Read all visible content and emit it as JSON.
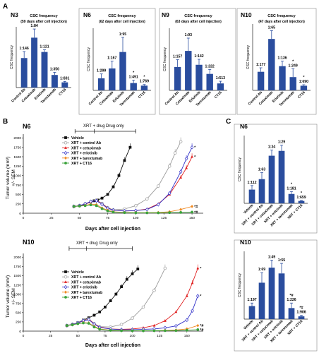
{
  "panel_labels": {
    "a": "A",
    "b": "B",
    "c": "C"
  },
  "colors": {
    "bar": "#2a4d9e",
    "axis": "#222222",
    "vehicle": "#111111",
    "control": "#9a9a9a",
    "cetuximab": "#e02020",
    "erlotinib": "#3030c8",
    "tarextumab": "#f08a24",
    "ct16": "#3aa23a"
  },
  "panel_b": {
    "n6_title": "N6",
    "n10_title": "N10",
    "n6_bracket": {
      "xrt_drug": "XRT + drug",
      "drug_only": "Drug only"
    },
    "n10_bracket": {
      "xrt_drug": "XRT + drug",
      "drug_only": "Drug only"
    },
    "ylabel_line1": "Tumor volume (mm³)",
    "ylabel_line2": "+/- SEM",
    "xlabel": "Days after cell injection"
  },
  "chart_data": [
    {
      "type": "bar",
      "id": "A-N3",
      "title": "N3",
      "subtitle": "CSC frequency",
      "subtitle2": "(59 days after cell injection)",
      "ylabel": "CSC frequency",
      "categories": [
        "Control Ab",
        "Cetuximab",
        "Erlotinib",
        "Tarextumab",
        "CT16"
      ],
      "values": [
        0.0068,
        0.0115,
        0.0082,
        0.0029,
        0.0012
      ],
      "errors": [
        0.0015,
        0.002,
        0.0005,
        0.0006,
        0.0002
      ],
      "labels": [
        "1:146",
        "1:84",
        "1:121",
        "1:350",
        "1:831"
      ],
      "stars": [
        "",
        "",
        "",
        "",
        ""
      ],
      "ylim": [
        0,
        0.014
      ]
    },
    {
      "type": "bar",
      "id": "A-N6",
      "title": "N6",
      "subtitle": "CSC frequency",
      "subtitle2": "(62 days after cell injection)",
      "ylabel": "CSC frequency",
      "categories": [
        "Control Ab",
        "Cetuximab",
        "Erlotinib",
        "Tarextumab",
        "CT16"
      ],
      "values": [
        0.0033,
        0.006,
        0.0105,
        0.002,
        0.0013
      ],
      "errors": [
        0.0012,
        0.002,
        0.004,
        0.0008,
        0.0003
      ],
      "labels": [
        "1:299",
        "1:167",
        "1:95",
        "1:491",
        "1:769"
      ],
      "stars": [
        "",
        "",
        "",
        "*",
        "*"
      ],
      "ylim": [
        0,
        0.017
      ]
    },
    {
      "type": "bar",
      "id": "A-N9",
      "title": "N9",
      "subtitle": "CSC frequency",
      "subtitle2": "(63 days after cell injection)",
      "ylabel": "CSC frequency",
      "categories": [
        "Control Ab",
        "Cetuximab",
        "Erlotinib",
        "Tarextumab",
        "CT16"
      ],
      "values": [
        0.0064,
        0.0108,
        0.007,
        0.0045,
        0.0019
      ],
      "errors": [
        0.002,
        0.0035,
        0.0015,
        0.0012,
        0.0006
      ],
      "labels": [
        "1:157",
        "1:93",
        "1:142",
        "1:222",
        "1:513"
      ],
      "stars": [
        "",
        "",
        "",
        "",
        ""
      ],
      "ylim": [
        0,
        0.017
      ]
    },
    {
      "type": "bar",
      "id": "A-N10",
      "title": "N10",
      "subtitle": "CSC frequency",
      "subtitle2": "(47 days after cell injection)",
      "ylabel": "CSC frequency",
      "categories": [
        "Control Ab",
        "Cetuximab",
        "Erlotinib",
        "Tarextumab",
        "CT16"
      ],
      "values": [
        0.0056,
        0.0155,
        0.0073,
        0.004,
        0.0014
      ],
      "errors": [
        0.0012,
        0.0025,
        0.0015,
        0.0025,
        0.0003
      ],
      "labels": [
        "1:177",
        "1:65",
        "1:136",
        "1:249",
        "1:690"
      ],
      "stars": [
        "",
        "",
        "",
        "*",
        "*"
      ],
      "ylim": [
        0,
        0.02
      ]
    },
    {
      "type": "line",
      "id": "B-N6",
      "title": "N6",
      "xlabel": "Days after cell injection",
      "ylabel": "Tumor volume (mm³) +/- SEM",
      "xlim": [
        0,
        160
      ],
      "ylim": [
        0,
        2100
      ],
      "xticks": [
        0,
        25,
        50,
        75,
        100,
        125,
        150
      ],
      "yticks": [
        0,
        250,
        500,
        750,
        1000,
        1250,
        1500,
        1750,
        2000
      ],
      "legend": "top-left",
      "series": [
        {
          "name": "Vehicle",
          "key": "vehicle",
          "marker": "filled-square",
          "x": [
            45,
            50,
            55,
            60,
            63,
            66,
            70,
            75,
            80,
            85,
            90,
            95
          ],
          "y": [
            180,
            200,
            240,
            300,
            330,
            350,
            400,
            500,
            700,
            1000,
            1400,
            1750
          ],
          "end_mark": ""
        },
        {
          "name": "XRT + control Ab",
          "key": "control",
          "marker": "open-circle",
          "x": [
            45,
            50,
            55,
            60,
            65,
            70,
            75,
            80,
            90,
            100,
            110,
            120,
            130,
            135,
            140
          ],
          "y": [
            180,
            200,
            250,
            310,
            350,
            260,
            150,
            90,
            110,
            200,
            380,
            720,
            1250,
            1600,
            1900
          ],
          "end_mark": ""
        },
        {
          "name": "XRT + cetuximab",
          "key": "cetuximab",
          "marker": "filled-triangle",
          "x": [
            45,
            50,
            55,
            60,
            65,
            70,
            75,
            80,
            90,
            100,
            110,
            120,
            130,
            140,
            145,
            150
          ],
          "y": [
            180,
            200,
            240,
            300,
            340,
            250,
            140,
            80,
            60,
            70,
            110,
            250,
            500,
            950,
            1200,
            1500
          ],
          "end_mark": "*"
        },
        {
          "name": "XRT + erlotinib",
          "key": "erlotinib",
          "marker": "open-diamond",
          "x": [
            45,
            50,
            55,
            60,
            65,
            70,
            75,
            80,
            90,
            100,
            110,
            120,
            130,
            140,
            145,
            150
          ],
          "y": [
            180,
            200,
            250,
            310,
            330,
            240,
            130,
            80,
            60,
            70,
            100,
            230,
            530,
            1100,
            1450,
            1750
          ],
          "end_mark": "*"
        },
        {
          "name": "XRT + tarextumab",
          "key": "tarextumab",
          "marker": "filled-diamond",
          "x": [
            45,
            50,
            55,
            60,
            65,
            70,
            75,
            80,
            90,
            100,
            110,
            120,
            130,
            140,
            150
          ],
          "y": [
            180,
            190,
            210,
            240,
            230,
            140,
            80,
            40,
            20,
            15,
            15,
            20,
            40,
            100,
            180
          ],
          "end_mark": "*#"
        },
        {
          "name": "XRT + CT16",
          "key": "ct16",
          "marker": "filled-circle",
          "x": [
            45,
            50,
            55,
            60,
            65,
            70,
            75,
            80,
            90,
            100,
            110,
            120,
            130,
            140,
            150
          ],
          "y": [
            180,
            190,
            200,
            220,
            200,
            120,
            60,
            30,
            15,
            10,
            10,
            10,
            15,
            20,
            30
          ],
          "end_mark": "*#"
        }
      ]
    },
    {
      "type": "line",
      "id": "B-N10",
      "title": "N10",
      "xlabel": "Days after cell injection",
      "ylabel": "Tumor volume (mm³) +/- SEM",
      "xlim": [
        0,
        165
      ],
      "ylim": [
        0,
        2100
      ],
      "xticks": [
        0,
        25,
        50,
        75,
        100,
        125,
        150
      ],
      "yticks": [
        0,
        250,
        500,
        750,
        1000,
        1250,
        1500,
        1750,
        2000
      ],
      "legend": "top-left",
      "series": [
        {
          "name": "Vehicle",
          "key": "vehicle",
          "marker": "filled-square",
          "x": [
            40,
            45,
            50,
            55,
            60,
            65,
            70,
            75,
            80,
            85,
            90,
            95,
            100,
            105
          ],
          "y": [
            150,
            180,
            230,
            300,
            360,
            430,
            520,
            650,
            820,
            1000,
            1200,
            1400,
            1550,
            1680
          ],
          "end_mark": ""
        },
        {
          "name": "XRT + control Ab",
          "key": "control",
          "marker": "open-circle",
          "x": [
            40,
            45,
            50,
            55,
            60,
            65,
            70,
            80,
            90,
            100,
            110,
            120,
            130
          ],
          "y": [
            150,
            180,
            230,
            290,
            330,
            200,
            120,
            110,
            180,
            350,
            650,
            1100,
            1700
          ],
          "end_mark": ""
        },
        {
          "name": "XRT + cetuximab",
          "key": "cetuximab",
          "marker": "filled-triangle",
          "x": [
            40,
            45,
            50,
            55,
            60,
            65,
            70,
            80,
            90,
            100,
            110,
            120,
            130,
            140,
            150,
            155,
            160
          ],
          "y": [
            150,
            180,
            220,
            280,
            320,
            200,
            110,
            60,
            50,
            60,
            90,
            150,
            280,
            520,
            950,
            1300,
            1700
          ],
          "end_mark": "*"
        },
        {
          "name": "XRT + erlotinib",
          "key": "erlotinib",
          "marker": "open-diamond",
          "x": [
            40,
            45,
            50,
            55,
            60,
            65,
            70,
            80,
            90,
            100,
            110,
            120,
            130,
            140,
            150,
            155,
            160
          ],
          "y": [
            150,
            180,
            220,
            280,
            310,
            190,
            100,
            55,
            40,
            40,
            50,
            60,
            90,
            140,
            300,
            550,
            950
          ],
          "end_mark": "*"
        },
        {
          "name": "XRT + tarextumab",
          "key": "tarextumab",
          "marker": "filled-diamond",
          "x": [
            40,
            45,
            50,
            55,
            60,
            65,
            70,
            80,
            90,
            100,
            110,
            120,
            130,
            140,
            150,
            160
          ],
          "y": [
            150,
            170,
            200,
            230,
            220,
            130,
            60,
            25,
            15,
            10,
            10,
            12,
            20,
            30,
            60,
            150
          ],
          "end_mark": "*#"
        },
        {
          "name": "XRT + CT16",
          "key": "ct16",
          "marker": "filled-circle",
          "x": [
            40,
            45,
            50,
            55,
            60,
            65,
            70,
            80,
            90,
            100,
            110,
            120,
            130,
            140,
            150,
            160
          ],
          "y": [
            150,
            170,
            200,
            220,
            210,
            110,
            50,
            20,
            10,
            8,
            8,
            10,
            12,
            15,
            25,
            40
          ],
          "end_mark": "*#"
        }
      ]
    },
    {
      "type": "bar",
      "id": "C-N6",
      "title": "N6",
      "ylabel": "CSC frequency",
      "categories": [
        "Vehicle",
        "XRT + control Ab",
        "XRT + cetuximab",
        "XRT + erlotinib",
        "XRT + tarextumab",
        "XRT + CT16"
      ],
      "values": [
        0.0085,
        0.015,
        0.0295,
        0.0325,
        0.0058,
        0.0015
      ],
      "errors": [
        0.0025,
        0.004,
        0.0035,
        0.0035,
        0.0015,
        0.0003
      ],
      "labels": [
        "1:112",
        "1:63",
        "1:34",
        "1:29",
        "1:181",
        "1:659"
      ],
      "stars": [
        "",
        "",
        "",
        "",
        "*",
        "*"
      ],
      "ylim": [
        0,
        0.042
      ]
    },
    {
      "type": "bar",
      "id": "C-N10",
      "title": "N10",
      "ylabel": "CSC frequency",
      "categories": [
        "Vehicle",
        "XRT + control Ab",
        "XRT + cetuximab",
        "XRT + erlotinib",
        "XRT + tarextumab",
        "XRT + CT16"
      ],
      "values": [
        0.0052,
        0.0145,
        0.0205,
        0.0182,
        0.0044,
        0.0011
      ],
      "errors": [
        0.0012,
        0.004,
        0.003,
        0.004,
        0.002,
        0.0004
      ],
      "labels": [
        "1:197",
        "1:69",
        "1:49",
        "1:55",
        "1:226",
        "1:906"
      ],
      "stars": [
        "",
        "",
        "",
        "",
        "*#",
        "*#"
      ],
      "ylim": [
        0,
        0.027
      ]
    }
  ]
}
